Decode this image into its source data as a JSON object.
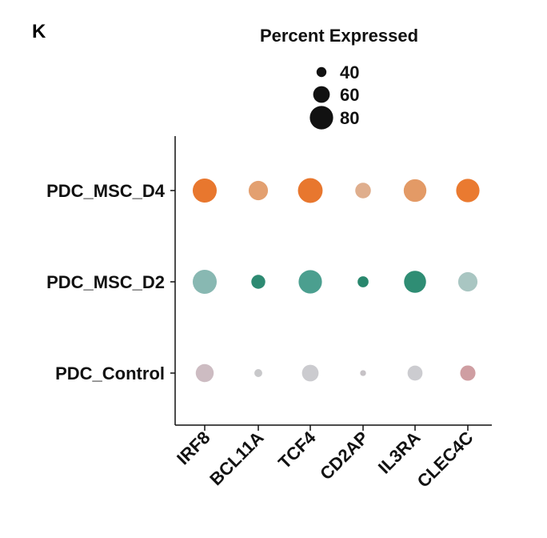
{
  "panel_label": "K",
  "chart_data": {
    "type": "dot",
    "title": "",
    "xlabel": "",
    "ylabel": "",
    "x_categories": [
      "IRF8",
      "BCL11A",
      "TCF4",
      "CD2AP",
      "IL3RA",
      "CLEC4C"
    ],
    "y_categories": [
      "PDC_MSC_D4",
      "PDC_MSC_D2",
      "PDC_Control"
    ],
    "legend": {
      "title": "Percent Expressed",
      "placement": "top",
      "sizes": [
        40,
        60,
        80
      ],
      "labels": [
        "40",
        "60",
        "80"
      ]
    },
    "points": [
      {
        "x": "IRF8",
        "y": "PDC_MSC_D4",
        "percent": 82,
        "color": "#e8772e"
      },
      {
        "x": "BCL11A",
        "y": "PDC_MSC_D4",
        "percent": 68,
        "color": "#e3a070"
      },
      {
        "x": "TCF4",
        "y": "PDC_MSC_D4",
        "percent": 84,
        "color": "#e8772e"
      },
      {
        "x": "CD2AP",
        "y": "PDC_MSC_D4",
        "percent": 57,
        "color": "#dfae8d"
      },
      {
        "x": "IL3RA",
        "y": "PDC_MSC_D4",
        "percent": 78,
        "color": "#e39a66"
      },
      {
        "x": "CLEC4C",
        "y": "PDC_MSC_D4",
        "percent": 80,
        "color": "#ea7a30"
      },
      {
        "x": "IRF8",
        "y": "PDC_MSC_D2",
        "percent": 82,
        "color": "#88b8b2"
      },
      {
        "x": "BCL11A",
        "y": "PDC_MSC_D2",
        "percent": 52,
        "color": "#2d8a72"
      },
      {
        "x": "TCF4",
        "y": "PDC_MSC_D2",
        "percent": 80,
        "color": "#4b9f8f"
      },
      {
        "x": "CD2AP",
        "y": "PDC_MSC_D2",
        "percent": 43,
        "color": "#28876d"
      },
      {
        "x": "IL3RA",
        "y": "PDC_MSC_D2",
        "percent": 76,
        "color": "#2f8d74"
      },
      {
        "x": "CLEC4C",
        "y": "PDC_MSC_D2",
        "percent": 68,
        "color": "#a9c6c2"
      },
      {
        "x": "IRF8",
        "y": "PDC_Control",
        "percent": 64,
        "color": "#cdbcc2"
      },
      {
        "x": "BCL11A",
        "y": "PDC_Control",
        "percent": 34,
        "color": "#c8c8ca"
      },
      {
        "x": "TCF4",
        "y": "PDC_Control",
        "percent": 60,
        "color": "#cbcbcf"
      },
      {
        "x": "CD2AP",
        "y": "PDC_Control",
        "percent": 28,
        "color": "#c6c2c6"
      },
      {
        "x": "IL3RA",
        "y": "PDC_Control",
        "percent": 55,
        "color": "#ccccd0"
      },
      {
        "x": "CLEC4C",
        "y": "PDC_Control",
        "percent": 56,
        "color": "#cf9ea2"
      }
    ]
  }
}
